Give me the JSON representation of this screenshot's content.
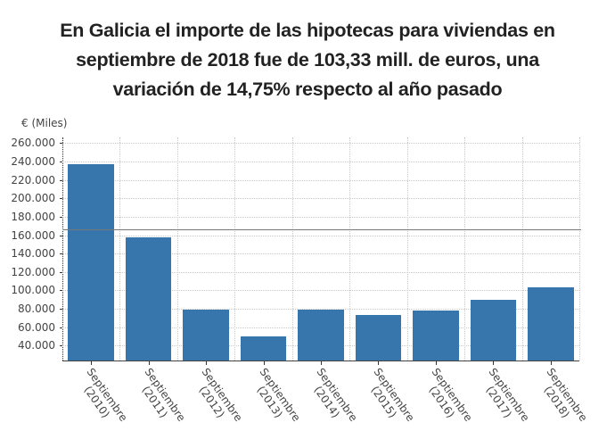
{
  "title": {
    "lines": [
      "En Galicia el importe de las hipotecas para viviendas en",
      "septiembre de 2018 fue de 103,33 mill. de euros, una",
      "variación de 14,75% respecto al año pasado"
    ]
  },
  "colors": {
    "bar": "#3776ad",
    "reference_line": "#777777",
    "grid": "#c8c8c8",
    "text": "#222222"
  },
  "chart_data": {
    "type": "bar",
    "title": "En Galicia el importe de las hipotecas para viviendas en septiembre de 2018 fue de 103,33 mill. de euros, una variación de 14,75% respecto al año pasado",
    "xlabel": "",
    "ylabel": "€ (Miles)",
    "categories": [
      "Septiembre (2010)",
      "Septiembre (2011)",
      "Septiembre (2012)",
      "Septiembre (2013)",
      "Septiembre (2014)",
      "Septiembre (2015)",
      "Septiembre (2016)",
      "Septiembre (2017)",
      "Septiembre (2018)"
    ],
    "category_lines": [
      [
        "Septiembre",
        "(2010)"
      ],
      [
        "Septiembre",
        "(2011)"
      ],
      [
        "Septiembre",
        "(2012)"
      ],
      [
        "Septiembre",
        "(2013)"
      ],
      [
        "Septiembre",
        "(2014)"
      ],
      [
        "Septiembre",
        "(2015)"
      ],
      [
        "Septiembre",
        "(2016)"
      ],
      [
        "Septiembre",
        "(2017)"
      ],
      [
        "Septiembre",
        "(2018)"
      ]
    ],
    "values": [
      237000,
      158000,
      79000,
      50000,
      79000,
      73000,
      78000,
      90000,
      103330
    ],
    "reference_line": {
      "value": 166000,
      "label": ""
    },
    "yticks": [
      "40.000",
      "60.000",
      "80.000",
      "100.000",
      "120.000",
      "140.000",
      "160.000",
      "180.000",
      "200.000",
      "220.000",
      "240.000",
      "260.000"
    ],
    "ytick_values": [
      40000,
      60000,
      80000,
      100000,
      120000,
      140000,
      160000,
      180000,
      200000,
      220000,
      240000,
      260000
    ],
    "ylim": [
      24000,
      266000
    ],
    "grid": true,
    "legend": null
  }
}
